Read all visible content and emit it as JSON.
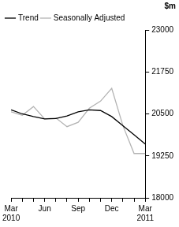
{
  "chart_data": {
    "type": "line",
    "y_label": "$m",
    "categories": [
      "Mar 2010",
      null,
      null,
      "Jun",
      null,
      null,
      "Sep",
      null,
      null,
      "Dec",
      null,
      null,
      "Mar 2011"
    ],
    "series": [
      {
        "name": "Trend",
        "color": "#000000",
        "values": [
          20620,
          20500,
          20420,
          20350,
          20360,
          20440,
          20560,
          20620,
          20600,
          20420,
          20150,
          19880,
          19600
        ]
      },
      {
        "name": "Seasonally Adjusted",
        "color": "#b3b3b3",
        "values": [
          20560,
          20460,
          20720,
          20350,
          20380,
          20120,
          20250,
          20670,
          20880,
          21260,
          20150,
          19320,
          19320
        ]
      }
    ],
    "ylim": [
      18000,
      23000
    ],
    "yticks": [
      18000,
      19250,
      20500,
      21750,
      23000
    ],
    "grid": false,
    "legend": "top-left"
  }
}
